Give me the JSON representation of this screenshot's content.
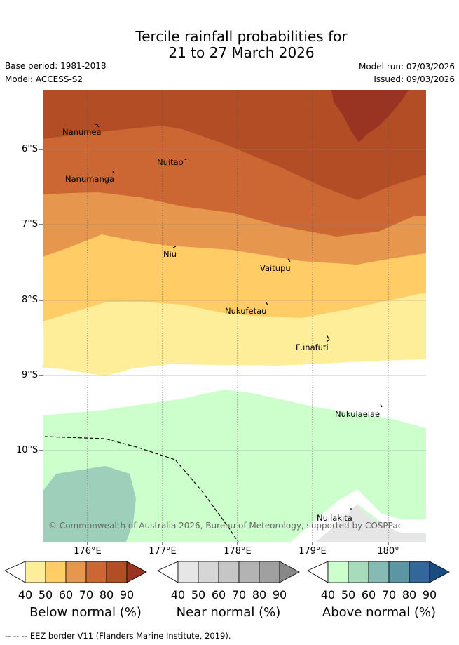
{
  "title": {
    "line1": "Tercile rainfall probabilities for",
    "line2": "21 to 27 March 2026"
  },
  "meta": {
    "base_period": "Base period: 1981-2018",
    "model": "Model: ACCESS-S2",
    "model_run": "Model run: 07/03/2026",
    "issued": "Issued: 09/03/2026"
  },
  "map": {
    "lat_labels": [
      "6°S",
      "7°S",
      "8°S",
      "9°S",
      "10°S"
    ],
    "lon_labels": [
      "176°E",
      "177°E",
      "178°E",
      "179°E",
      "180°"
    ],
    "places": [
      {
        "name": "Nanumea"
      },
      {
        "name": "Nuitao"
      },
      {
        "name": "Nanumanga"
      },
      {
        "name": "Niu"
      },
      {
        "name": "Vaitupu"
      },
      {
        "name": "Nukufetau"
      },
      {
        "name": "Funafuti"
      },
      {
        "name": "Nukulaelae"
      },
      {
        "name": "Nuilakita"
      }
    ],
    "copyright": "© Commonwealth of Australia 2026, Bureau of Meteorology, supported by COSPPac"
  },
  "legends": [
    {
      "title": "Below normal (%)",
      "ticks": [
        "40",
        "50",
        "60",
        "70",
        "80",
        "90"
      ],
      "colors": [
        "#ffee99",
        "#ffcc66",
        "#e6964d",
        "#cc6633",
        "#b34d26",
        "#993322"
      ]
    },
    {
      "title": "Near normal (%)",
      "ticks": [
        "40",
        "50",
        "60",
        "70",
        "80",
        "90"
      ],
      "colors": [
        "#e6e6e6",
        "#d6d6d6",
        "#c6c6c6",
        "#b3b3b3",
        "#a0a0a0",
        "#888888"
      ]
    },
    {
      "title": "Above normal (%)",
      "ticks": [
        "40",
        "50",
        "60",
        "70",
        "80",
        "90"
      ],
      "colors": [
        "#ccffcc",
        "#a8dbbb",
        "#85bbb4",
        "#5c95a3",
        "#336699",
        "#1a4c80"
      ]
    }
  ],
  "footer": "--  --  -- EEZ border V11 (Flanders Marine Institute, 2019)."
}
